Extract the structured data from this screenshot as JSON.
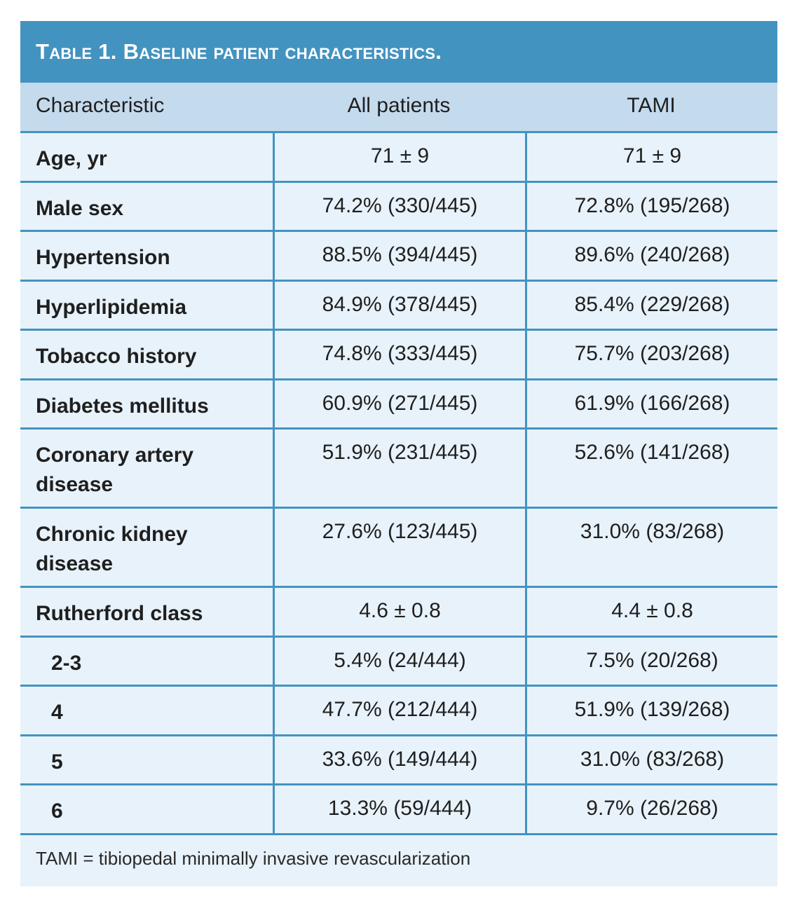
{
  "table": {
    "title": "Table 1.  Baseline patient characteristics.",
    "colors": {
      "title_bg": "#4393c0",
      "header_bg": "#c4daed",
      "body_bg": "#e8f2fa",
      "rule": "#4393c0"
    },
    "columns": [
      "Characteristic",
      "All patients",
      "TAMI"
    ],
    "rows": [
      {
        "label": "Age, yr",
        "all": "71 ± 9",
        "tami": "71 ± 9"
      },
      {
        "label": "Male sex",
        "all": "74.2% (330/445)",
        "tami": "72.8% (195/268)"
      },
      {
        "label": "Hypertension",
        "all": "88.5% (394/445)",
        "tami": "89.6% (240/268)"
      },
      {
        "label": "Hyperlipidemia",
        "all": "84.9% (378/445)",
        "tami": "85.4% (229/268)"
      },
      {
        "label": "Tobacco history",
        "all": "74.8% (333/445)",
        "tami": "75.7% (203/268)"
      },
      {
        "label": "Diabetes mellitus",
        "all": "60.9% (271/445)",
        "tami": "61.9% (166/268)"
      },
      {
        "label": "Coronary artery disease",
        "all": "51.9% (231/445)",
        "tami": "52.6% (141/268)"
      },
      {
        "label": "Chronic kidney disease",
        "all": "27.6% (123/445)",
        "tami": "31.0% (83/268)"
      },
      {
        "label": "Rutherford class",
        "all": "4.6 ± 0.8",
        "tami": "4.4 ± 0.8"
      },
      {
        "label": "2-3",
        "all": "5.4% (24/444)",
        "tami": "7.5% (20/268)"
      },
      {
        "label": "4",
        "all": "47.7% (212/444)",
        "tami": "51.9% (139/268)"
      },
      {
        "label": "5",
        "all": "33.6% (149/444)",
        "tami": "31.0% (83/268)"
      },
      {
        "label": "6",
        "all": "13.3% (59/444)",
        "tami": "9.7% (26/268)"
      }
    ],
    "footnote": "TAMI = tibiopedal minimally invasive revascularization"
  }
}
